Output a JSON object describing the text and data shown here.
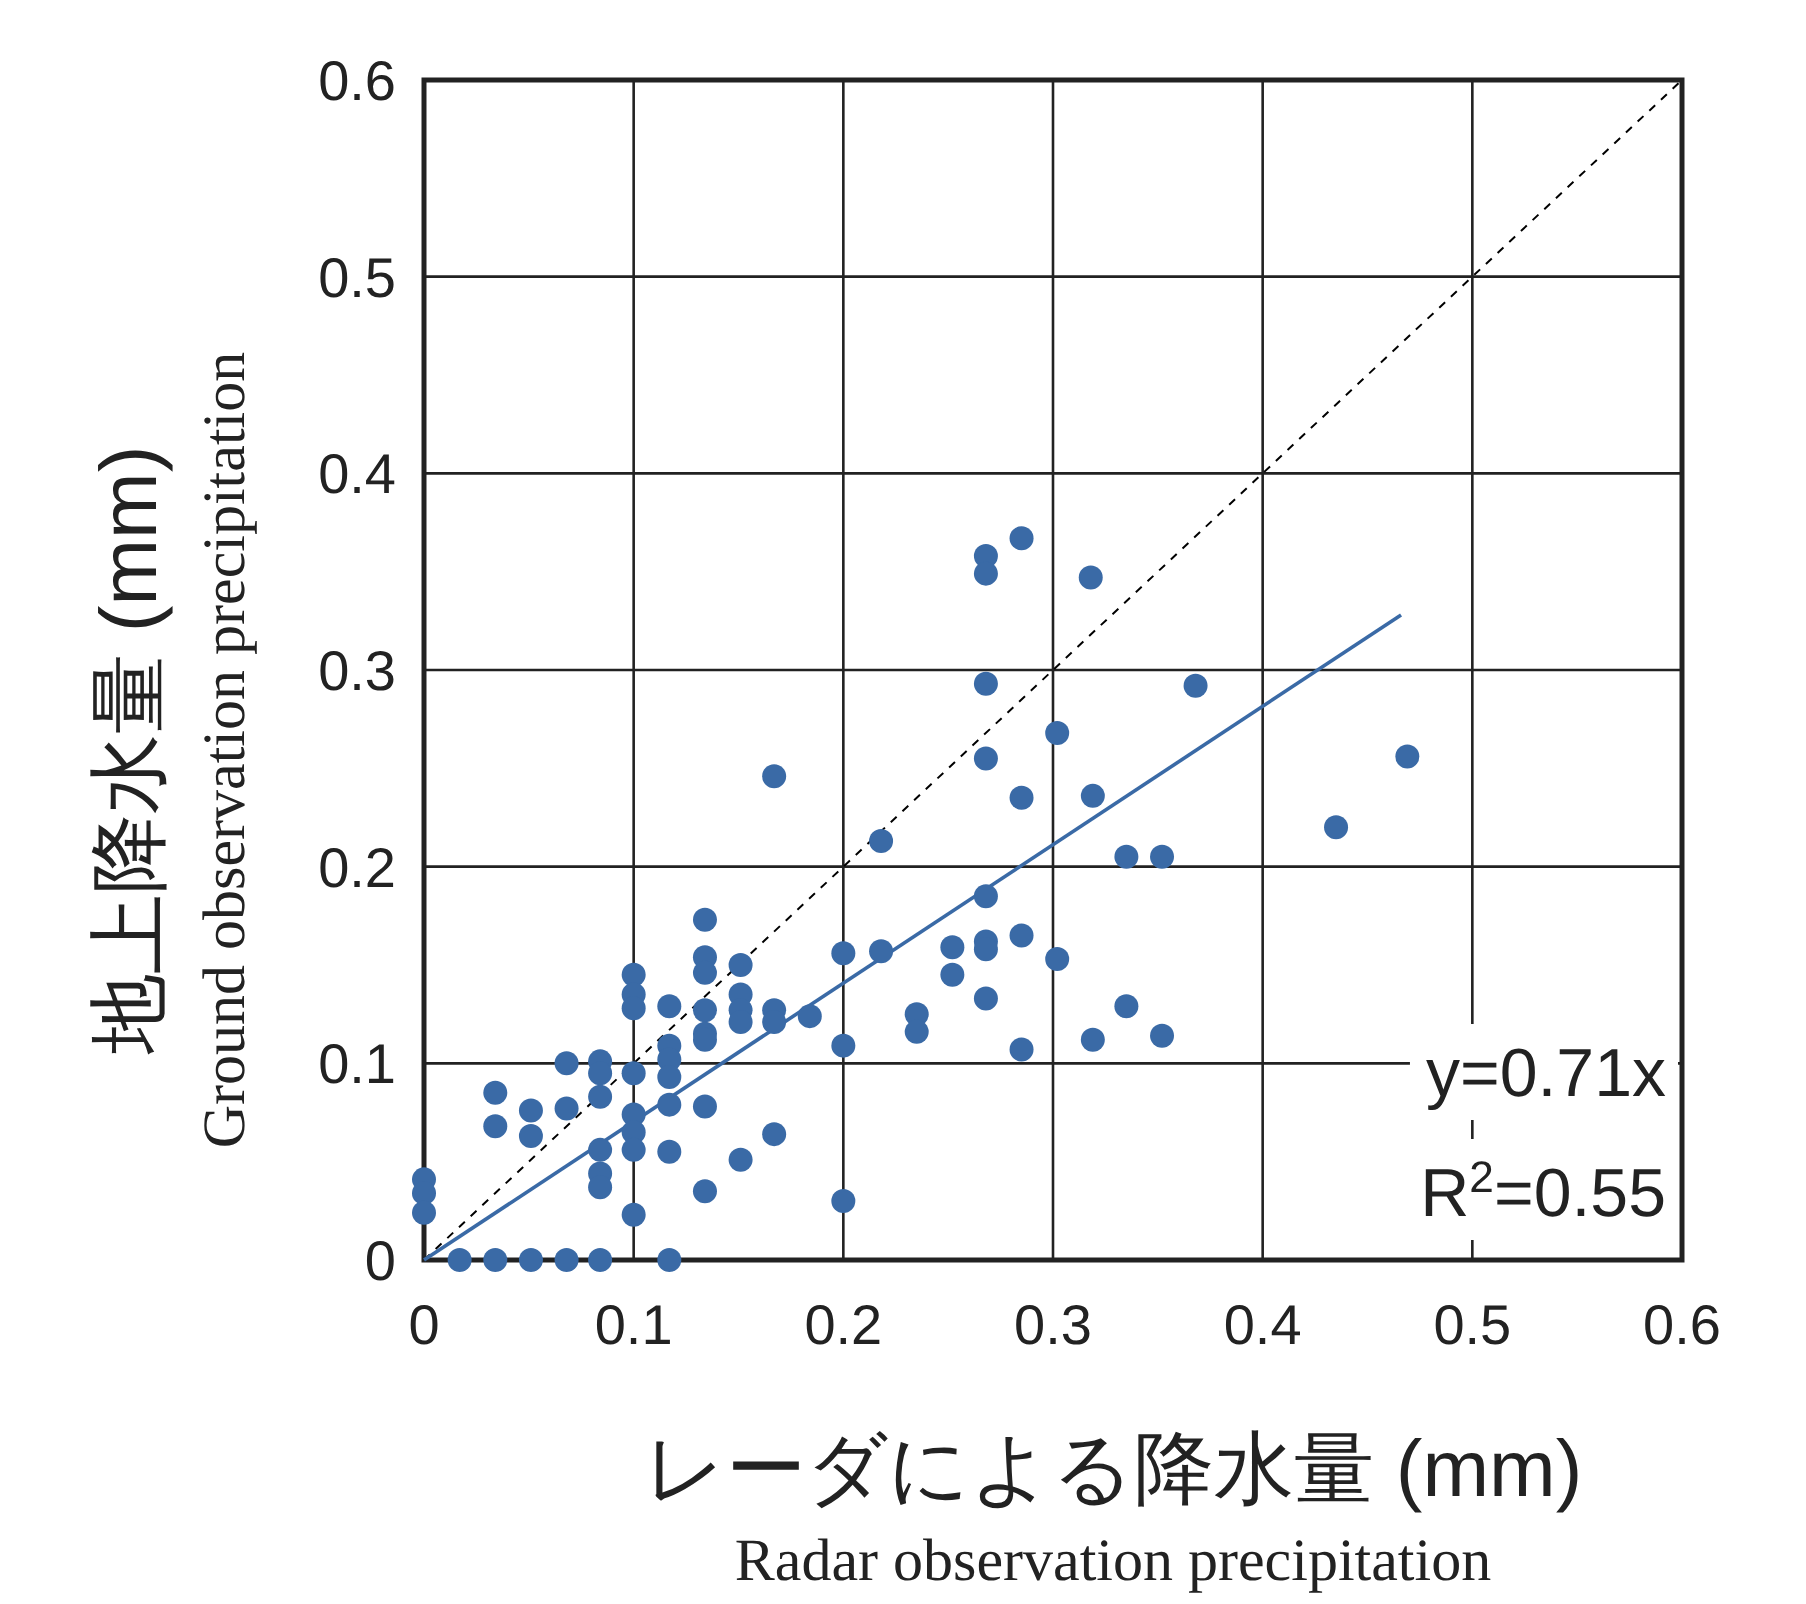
{
  "chart_data": {
    "type": "scatter",
    "xlabel": "レーダによる降水量 (mm)\nRadar observation precipitation",
    "ylabel": "地上降水量 (mm)\nGround observation precipitation",
    "annotations": [
      "y=0.71x",
      "R$^{2}$=0.55"
    ],
    "xlim": [
      0,
      0.6
    ],
    "ylim": [
      0,
      0.6
    ],
    "xticks": [
      0,
      0.1,
      0.2,
      0.3,
      0.4,
      0.5,
      0.6
    ],
    "yticks": [
      0,
      0.1,
      0.2,
      0.3,
      0.4,
      0.5,
      0.6
    ],
    "grid": true,
    "series": [
      {
        "type": "line",
        "color": "#000000",
        "line_style": "dashed",
        "x": [
          0,
          0.6
        ],
        "values": [
          0,
          0.6
        ]
      },
      {
        "type": "line",
        "color": "#3a6aa6",
        "line_style": "solid",
        "x": [
          0,
          0.466
        ],
        "values": [
          0,
          0.328
        ]
      },
      {
        "type": "scatter",
        "color": "#3a6aa6",
        "marker": "circle",
        "x": [
          0,
          0,
          0,
          0.017,
          0.034,
          0.051,
          0.068,
          0.084,
          0.117,
          0.034,
          0.034,
          0.051,
          0.051,
          0.068,
          0.068,
          0.084,
          0.084,
          0.084,
          0.084,
          0.084,
          0.084,
          0.1,
          0.1,
          0.1,
          0.1,
          0.1,
          0.1,
          0.1,
          0.1,
          0.117,
          0.117,
          0.117,
          0.117,
          0.117,
          0.117,
          0.134,
          0.134,
          0.134,
          0.134,
          0.134,
          0.134,
          0.134,
          0.134,
          0.151,
          0.151,
          0.151,
          0.151,
          0.151,
          0.167,
          0.167,
          0.167,
          0.167,
          0.184,
          0.2,
          0.2,
          0.2,
          0.268,
          0.268,
          0.285,
          0.318,
          0.268,
          0.368,
          0.302,
          0.268,
          0.285,
          0.319,
          0.218,
          0.335,
          0.352,
          0.435,
          0.469,
          0.268,
          0.218,
          0.252,
          0.252,
          0.268,
          0.268,
          0.285,
          0.302,
          0.268,
          0.235,
          0.235,
          0.335,
          0.285,
          0.319,
          0.352
        ],
        "values": [
          0.041,
          0.034,
          0.024,
          0,
          0,
          0,
          0,
          0,
          0,
          0.085,
          0.068,
          0.076,
          0.063,
          0.1,
          0.077,
          0.101,
          0.095,
          0.083,
          0.056,
          0.044,
          0.037,
          0.145,
          0.135,
          0.128,
          0.095,
          0.074,
          0.065,
          0.056,
          0.023,
          0.129,
          0.109,
          0.102,
          0.093,
          0.079,
          0.055,
          0.173,
          0.154,
          0.146,
          0.127,
          0.115,
          0.112,
          0.078,
          0.035,
          0.15,
          0.135,
          0.127,
          0.121,
          0.051,
          0.127,
          0.121,
          0.064,
          0.246,
          0.124,
          0.156,
          0.109,
          0.03,
          0.358,
          0.349,
          0.367,
          0.347,
          0.293,
          0.292,
          0.268,
          0.255,
          0.235,
          0.236,
          0.213,
          0.205,
          0.205,
          0.22,
          0.256,
          0.185,
          0.157,
          0.159,
          0.145,
          0.162,
          0.158,
          0.165,
          0.153,
          0.133,
          0.125,
          0.116,
          0.129,
          0.107,
          0.112,
          0.114
        ]
      }
    ]
  }
}
